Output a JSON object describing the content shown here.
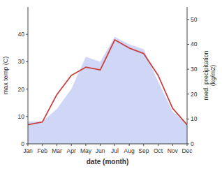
{
  "chart_data": {
    "type": "line",
    "categories": [
      "Jan",
      "Feb",
      "Mar",
      "Apr",
      "May",
      "Jun",
      "Jul",
      "Aug",
      "Sep",
      "Oct",
      "Nov",
      "Dec"
    ],
    "xlabel": "date (month)",
    "ylabel": "max temp (C)",
    "y2label": "med. precipitation\n(kg/m2)",
    "series": [
      {
        "type": "area",
        "axis": "y2",
        "color": "#c8d0f5",
        "values": [
          9,
          9,
          14,
          22,
          35,
          33,
          43,
          40,
          38,
          25,
          13,
          8
        ]
      },
      {
        "type": "line",
        "color": "#c84040",
        "values": [
          7,
          8,
          18,
          25,
          28,
          27,
          38,
          35,
          33,
          25,
          13,
          7
        ]
      }
    ],
    "ylim": [
      0,
      50
    ],
    "yticks": [
      0,
      10,
      20,
      30,
      40
    ],
    "y2lim": [
      0,
      55
    ],
    "y2ticks": [
      0,
      10,
      20,
      30,
      40,
      50
    ]
  }
}
